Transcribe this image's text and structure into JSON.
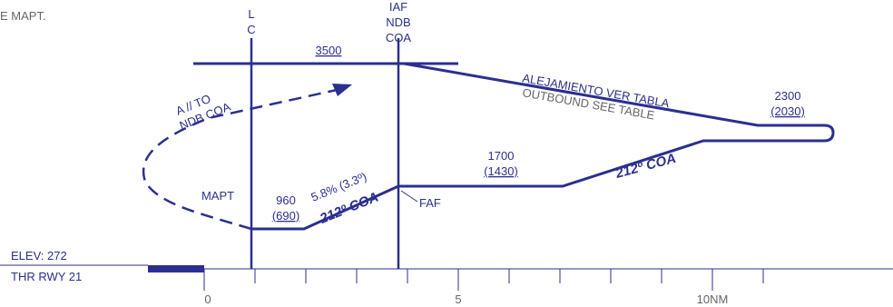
{
  "header": {
    "note": "E MAPT."
  },
  "fixes": {
    "lc": [
      "L",
      "C"
    ],
    "iaf": [
      "IAF",
      "NDB",
      "COA"
    ],
    "mapt": "MAPT",
    "faf": "FAF"
  },
  "altitudes": {
    "top": "3500",
    "outbound": [
      "2300",
      "(2030)"
    ],
    "intermediate": [
      "1700",
      "(1430)"
    ],
    "mapt": [
      "960",
      "(690)"
    ]
  },
  "labels": {
    "outbound_es": "ALEJAMIENTO VER TABLA",
    "outbound_en": "OUTBOUND SEE TABLE",
    "course_1": "212º COA",
    "course_2": "212º COA",
    "gradient": "5.8% (3.3º)",
    "missed": [
      "A // TO",
      "NDB COA"
    ]
  },
  "runway": {
    "elev": "ELEV: 272",
    "thr": "THR RWY 21"
  },
  "scale": {
    "labels": [
      "0",
      "5",
      "10NM"
    ]
  }
}
